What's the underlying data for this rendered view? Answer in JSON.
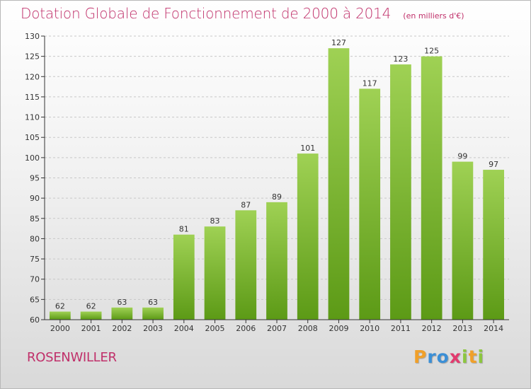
{
  "header": {
    "title": "Dotation Globale de Fonctionnement de 2000 à 2014",
    "subtitle": "(en milliers d'€)"
  },
  "footer": {
    "commune": "ROSENWILLER",
    "logo_letters": [
      {
        "ch": "P",
        "color": "#f0a02a"
      },
      {
        "ch": "r",
        "color": "#3b8fd6"
      },
      {
        "ch": "o",
        "color": "#3b8fd6"
      },
      {
        "ch": "x",
        "color": "#e23a6e"
      },
      {
        "ch": "i",
        "color": "#8cc63f"
      },
      {
        "ch": "t",
        "color": "#f0a02a"
      },
      {
        "ch": "i",
        "color": "#8cc63f"
      }
    ]
  },
  "colors": {
    "title": "#c0306a",
    "bar_light": "#9fd154",
    "bar_dark": "#5c9a16",
    "axis": "#333333",
    "grid": "#c8c8c8"
  },
  "chart_data": {
    "type": "bar",
    "categories": [
      "2000",
      "2001",
      "2002",
      "2003",
      "2004",
      "2005",
      "2006",
      "2007",
      "2008",
      "2009",
      "2010",
      "2011",
      "2012",
      "2013",
      "2014"
    ],
    "values": [
      62,
      62,
      63,
      63,
      81,
      83,
      87,
      89,
      101,
      127,
      117,
      123,
      125,
      99,
      97
    ],
    "title": "Dotation Globale de Fonctionnement de 2000 à 2014",
    "subtitle": "(en milliers d'€)",
    "xlabel": "",
    "ylabel": "",
    "ylim": [
      60,
      130
    ],
    "yticks": [
      60,
      65,
      70,
      75,
      80,
      85,
      90,
      95,
      100,
      105,
      110,
      115,
      120,
      125,
      130
    ],
    "grid": "dashed-horizontal",
    "data_labels": true
  }
}
